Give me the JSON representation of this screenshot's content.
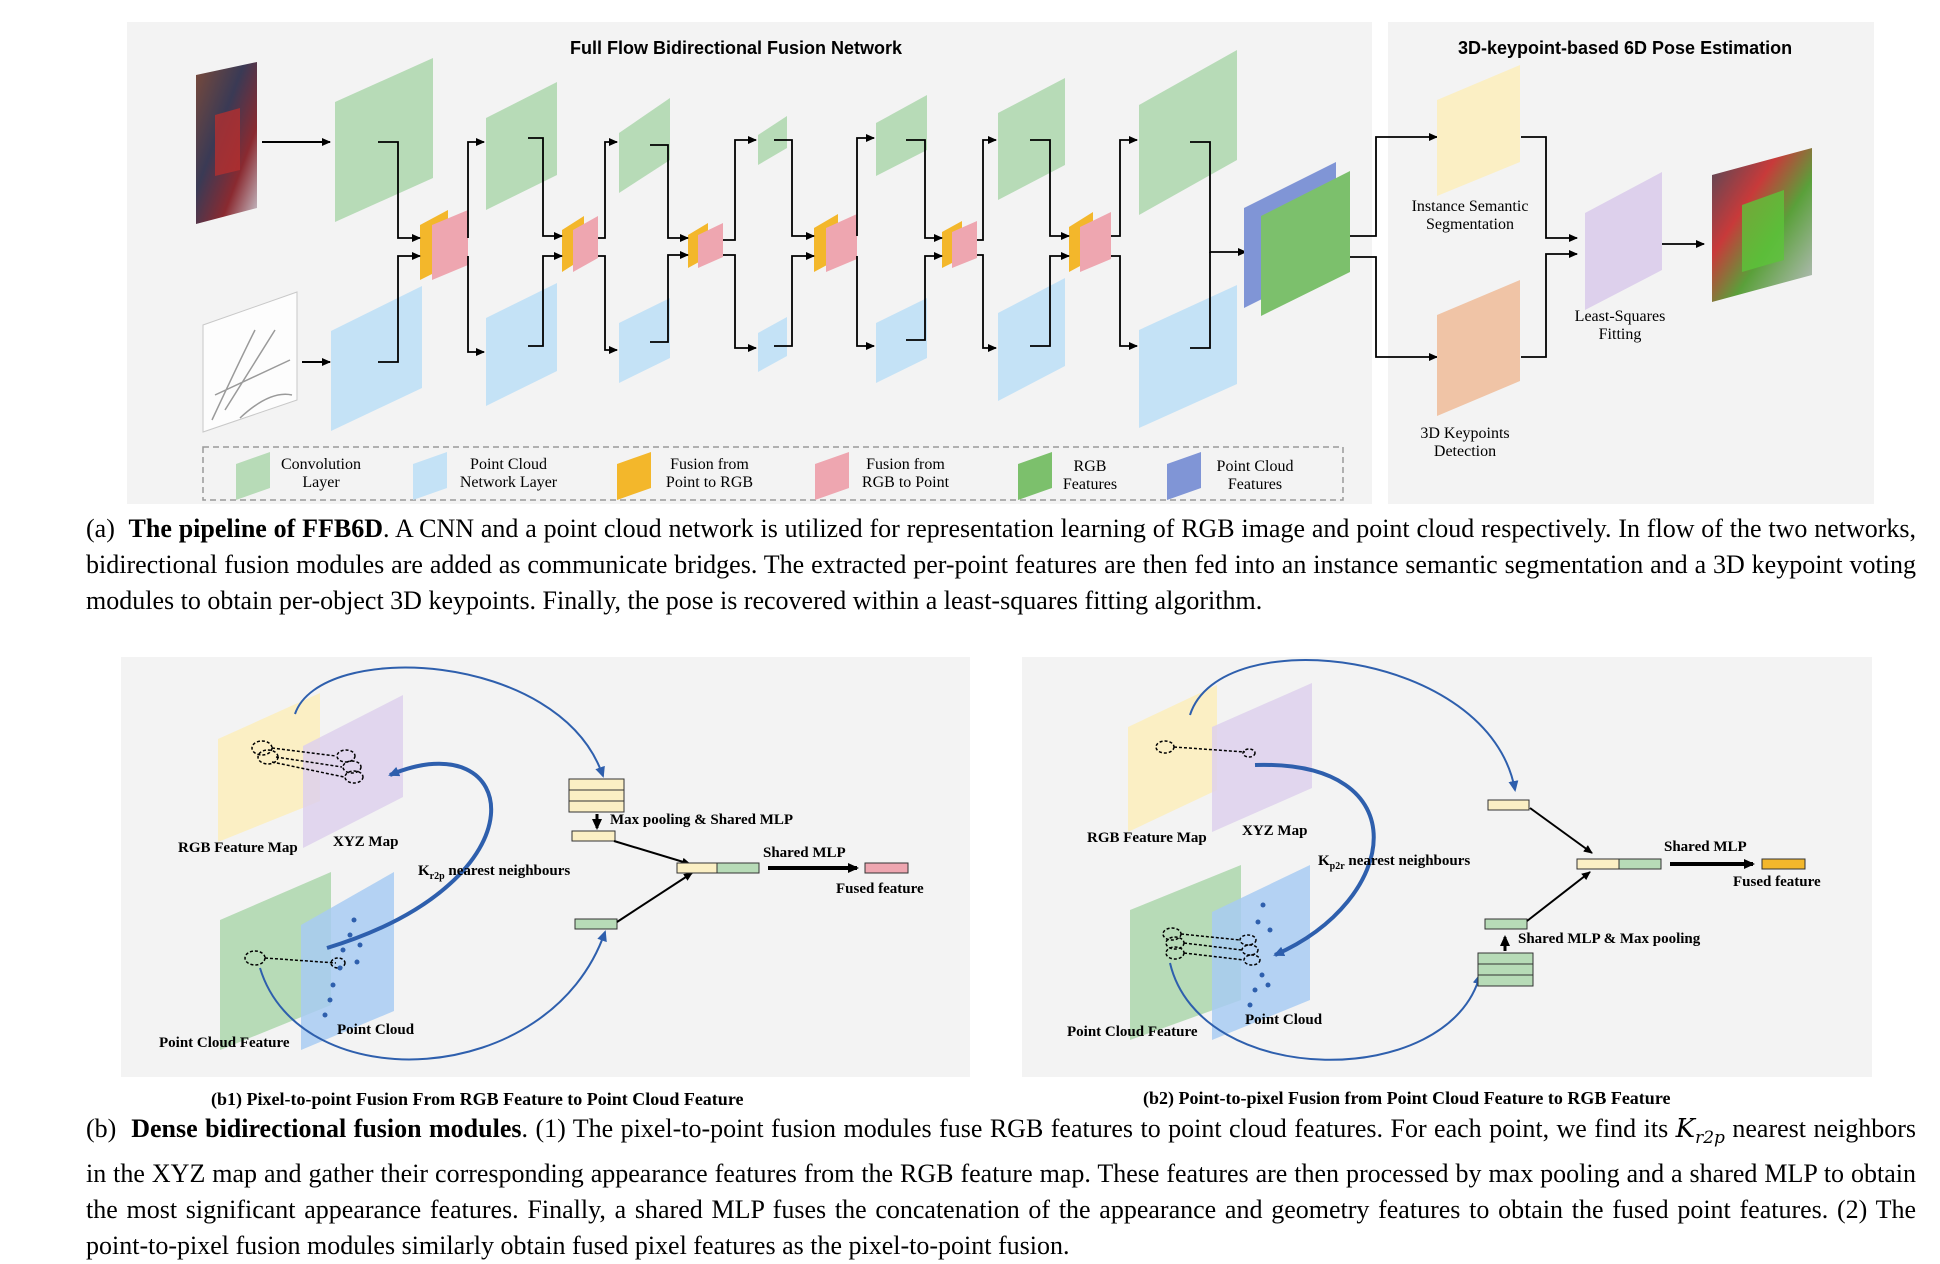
{
  "part_a": {
    "panel_title_left": "Full Flow Bidirectional Fusion Network",
    "panel_title_right": "3D-keypoint-based 6D Pose Estimation",
    "right_labels": {
      "semseg": [
        "Instance Semantic",
        "Segmentation"
      ],
      "kpdet": [
        "3D Keypoints",
        "Detection"
      ],
      "lsfit": [
        "Least-Squares",
        "Fitting"
      ]
    },
    "legend": [
      {
        "lines": [
          "Convolution",
          "Layer"
        ],
        "color": "#b7dbb7",
        "icon": "conv-swatch"
      },
      {
        "lines": [
          "Point Cloud",
          "Network Layer"
        ],
        "color": "#c4e2f6",
        "icon": "pc-swatch"
      },
      {
        "lines": [
          "Fusion from",
          "Point to RGB"
        ],
        "color": "#f3b72b",
        "icon": "p2r-swatch"
      },
      {
        "lines": [
          "Fusion from",
          "RGB to Point"
        ],
        "color": "#eea6b0",
        "icon": "r2p-swatch"
      },
      {
        "lines": [
          "RGB",
          "Features"
        ],
        "color": "#7cc06c",
        "icon": "rgbfeat-swatch"
      },
      {
        "lines": [
          "Point Cloud",
          "Features"
        ],
        "color": "#8095d6",
        "icon": "pcfeat-swatch"
      }
    ],
    "caption_prefix": "(a)",
    "caption_bold": "The pipeline of FFB6D",
    "caption_text": ". A CNN and a point cloud network is utilized for representation learning of RGB image and point cloud respectively. In flow of the two networks, bidirectional fusion modules are added as communicate bridges. The extracted per-point features are then fed into an instance semantic segmentation and a 3D keypoint voting modules to obtain per-object 3D keypoints. Finally, the pose is recovered within a least-squares fitting algorithm."
  },
  "part_b1": {
    "rgb_map": "RGB Feature Map",
    "xyz_map": "XYZ Map",
    "neighbours_k": "K",
    "neighbours_sub": "r2p",
    "neighbours_text": " nearest neighbours",
    "pool_label": "Max pooling & Shared MLP",
    "shared_mlp": "Shared MLP",
    "fused": "Fused feature",
    "pc_feature": "Point Cloud Feature",
    "pc": "Point Cloud",
    "subcaption": "(b1) Pixel-to-point Fusion From RGB Feature to Point Cloud Feature"
  },
  "part_b2": {
    "rgb_map": "RGB Feature Map",
    "xyz_map": "XYZ Map",
    "neighbours_k": "K",
    "neighbours_sub": "p2r",
    "neighbours_text": " nearest neighbours",
    "pool_label": "Shared MLP & Max pooling",
    "shared_mlp": "Shared MLP",
    "fused": "Fused feature",
    "pc_feature": "Point Cloud Feature",
    "pc": "Point Cloud",
    "subcaption": "(b2) Point-to-pixel Fusion from Point Cloud Feature to RGB Feature"
  },
  "part_b_caption": {
    "prefix": "(b)",
    "bold": "Dense bidirectional fusion modules",
    "text1": ". (1) The pixel-to-point fusion modules fuse RGB features to point cloud features. For each point, we find its ",
    "k_var": "K",
    "k_sub": "r2p",
    "text2": " nearest neighbors in the XYZ map and gather their corresponding appearance features from the RGB feature map. These features are then processed by max pooling and a shared MLP to obtain the most significant appearance features. Finally, a shared MLP fuses the concatenation of the appearance and geometry features to obtain the fused point features. (2) The point-to-pixel fusion modules similarly obtain fused pixel features as the pixel-to-point fusion."
  }
}
